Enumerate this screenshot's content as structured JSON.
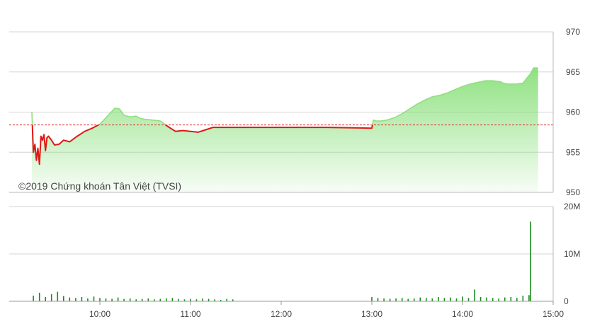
{
  "watermark": "©2019 Chứng khoán Tân Việt (TVSI)",
  "colors": {
    "above_fill": "#7fdd6f",
    "above_line": "#8fe07f",
    "below_line": "#e01818",
    "reference_line": "#e03030",
    "volume_bar": "#1a8a1a",
    "grid": "#d4d4d4",
    "axis": "#b8b8b8"
  },
  "chart_data": [
    {
      "type": "area",
      "x_unit": "time of day",
      "ylim": [
        950,
        970
      ],
      "y_ticks": [
        "950",
        "955",
        "960",
        "965",
        "970"
      ],
      "reference": 958.4,
      "grid": true,
      "series": [
        {
          "x": [
            "09:15",
            "09:16",
            "09:17",
            "09:18",
            "09:19",
            "09:20",
            "09:21",
            "09:22",
            "09:23",
            "09:24",
            "09:25",
            "09:26",
            "09:28",
            "09:30",
            "09:33",
            "09:36",
            "09:40",
            "09:45",
            "09:50",
            "09:55",
            "10:00",
            "10:05",
            "10:10",
            "10:13",
            "10:16",
            "10:20",
            "10:24",
            "10:27",
            "10:30",
            "10:35",
            "10:40",
            "10:45",
            "10:50",
            "10:55",
            "11:00",
            "11:05",
            "11:10",
            "11:15",
            "11:20",
            "11:25",
            "11:30",
            "11:33",
            "11:36",
            "11:40",
            "11:45",
            "11:50",
            "11:55",
            "12:00",
            "12:30",
            "13:00",
            "13:01",
            "13:03",
            "13:06",
            "13:10",
            "13:15",
            "13:20",
            "13:25",
            "13:30",
            "13:35",
            "13:40",
            "13:45",
            "13:50",
            "13:55",
            "14:00",
            "14:05",
            "14:10",
            "14:15",
            "14:20",
            "14:25",
            "14:27",
            "14:30",
            "14:35",
            "14:40",
            "14:45",
            "14:47",
            "14:48",
            "14:50"
          ],
          "y": [
            960.0,
            955.0,
            956.0,
            954.0,
            955.5,
            953.5,
            957.0,
            956.5,
            957.2,
            955.2,
            956.8,
            957.0,
            956.5,
            955.9,
            956.0,
            956.5,
            956.3,
            957.0,
            957.6,
            958.0,
            958.5,
            959.5,
            960.5,
            960.4,
            959.6,
            959.4,
            959.5,
            959.2,
            959.1,
            959.0,
            958.9,
            958.2,
            957.6,
            957.7,
            957.6,
            957.5,
            957.8,
            958.1,
            958.1,
            958.1,
            958.1,
            958.1,
            958.1,
            958.1,
            958.1,
            958.1,
            958.1,
            958.1,
            958.1,
            958.0,
            959.0,
            958.9,
            958.9,
            959.0,
            959.3,
            959.8,
            960.4,
            961.0,
            961.5,
            961.9,
            962.1,
            962.4,
            962.8,
            963.2,
            963.5,
            963.7,
            963.9,
            963.9,
            963.8,
            963.6,
            963.5,
            963.5,
            963.6,
            964.8,
            965.5,
            965.5,
            965.5
          ]
        }
      ]
    },
    {
      "type": "bar",
      "x_unit": "time of day",
      "ylim": [
        0,
        20000000
      ],
      "y_ticks": [
        "0",
        "10M",
        "20M"
      ],
      "x_ticks": [
        "10:00",
        "11:00",
        "12:00",
        "13:00",
        "14:00",
        "15:00"
      ],
      "grid": true,
      "series": [
        {
          "x": [
            "09:16",
            "09:20",
            "09:24",
            "09:28",
            "09:32",
            "09:36",
            "09:40",
            "09:44",
            "09:48",
            "09:52",
            "09:56",
            "10:00",
            "10:04",
            "10:08",
            "10:12",
            "10:16",
            "10:20",
            "10:24",
            "10:28",
            "10:32",
            "10:36",
            "10:40",
            "10:44",
            "10:48",
            "10:52",
            "10:56",
            "11:00",
            "11:04",
            "11:08",
            "11:12",
            "11:16",
            "11:20",
            "11:24",
            "11:28",
            "13:00",
            "13:04",
            "13:08",
            "13:12",
            "13:16",
            "13:20",
            "13:24",
            "13:28",
            "13:32",
            "13:36",
            "13:40",
            "13:44",
            "13:48",
            "13:52",
            "13:56",
            "14:00",
            "14:04",
            "14:08",
            "14:12",
            "14:16",
            "14:20",
            "14:24",
            "14:28",
            "14:32",
            "14:36",
            "14:40",
            "14:44",
            "14:45"
          ],
          "values": [
            1200000,
            1800000,
            900000,
            1500000,
            2000000,
            1100000,
            800000,
            700000,
            900000,
            600000,
            1000000,
            700000,
            600000,
            500000,
            800000,
            500000,
            600000,
            400000,
            500000,
            600000,
            400000,
            500000,
            600000,
            700000,
            500000,
            400000,
            500000,
            400000,
            600000,
            500000,
            400000,
            300000,
            500000,
            400000,
            900000,
            700000,
            600000,
            500000,
            600000,
            700000,
            500000,
            600000,
            800000,
            700000,
            600000,
            900000,
            700000,
            800000,
            600000,
            1000000,
            700000,
            2500000,
            900000,
            800000,
            700000,
            600000,
            800000,
            900000,
            700000,
            1200000,
            1300000,
            16800000
          ]
        }
      ]
    }
  ]
}
